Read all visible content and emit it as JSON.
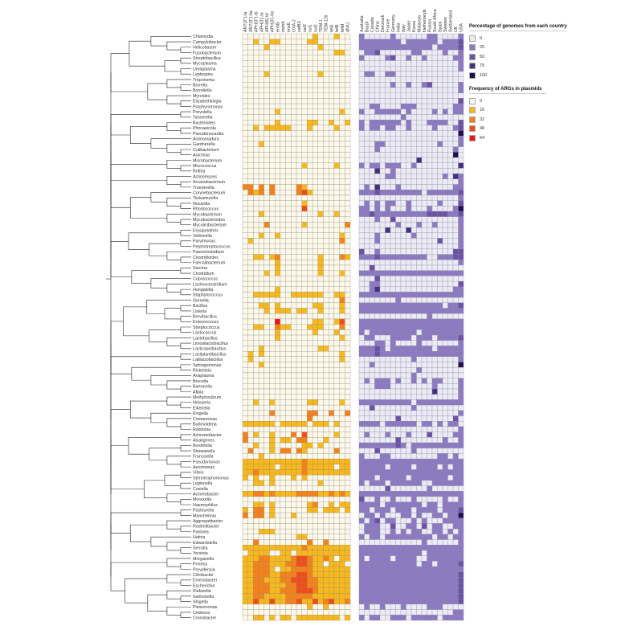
{
  "chart_data": [
    {
      "type": "heatmap",
      "title": "",
      "legend_title": "Frequency of ARGs in plasmids",
      "legend_levels": [
        "0",
        "16",
        "32",
        "48",
        "64"
      ],
      "colors": [
        "#fdf8ea",
        "#f8b81b",
        "#f6801a",
        "#f24b17",
        "#f01313"
      ],
      "columns": [
        "ANT(2'')-Ia",
        "ANT(3'')-IIa",
        "APH(3'')-Ib",
        "APH(3')-Ia",
        "APH(6)-Id",
        "APH(3')-IIa",
        "ermB",
        "mphA",
        "msrE",
        "OXA-2",
        "catB3",
        "sat2",
        "sul1",
        "sul2",
        "TEM-1",
        "TEM-116",
        "tetA",
        "tetB",
        "tetM",
        "dfrA1"
      ]
    },
    {
      "type": "heatmap",
      "title": "",
      "legend_title": "Percentage of genomes from each country",
      "legend_levels": [
        "0",
        "25",
        "50",
        "75",
        "100"
      ],
      "colors": [
        "#ebeaf5",
        "#8c79c3",
        "#6a52a6",
        "#44307f",
        "#200f50"
      ],
      "columns": [
        "Australia",
        "Brazil",
        "Canada",
        "China",
        "Denmark",
        "France",
        "Germany",
        "India",
        "Italy",
        "Japan",
        "Korea",
        "Malaysia",
        "Netherlands",
        "Russia",
        "South Africa",
        "Spain",
        "Sweden",
        "Switzerland",
        "UK",
        "USA"
      ]
    }
  ],
  "rows": [
    {
      "name": "Chlamydia",
      "args": "00000000000001000100",
      "countries": "10000010000001100001"
    },
    {
      "name": "Campylobacter",
      "args": "00100110000011000000",
      "countries": "11111111011111101112"
    },
    {
      "name": "Helicobacter",
      "args": "00001000000000100000",
      "countries": "11111111111111011112"
    },
    {
      "name": "Fusobacterium",
      "args": "00000000000000000110",
      "countries": "01120000001100001001"
    },
    {
      "name": "Streptobacillus",
      "args": "00000000000000000000",
      "countries": "10000120010010000011"
    },
    {
      "name": "Mycoplasma",
      "args": "00000000000000000000",
      "countries": "00000000000000000001"
    },
    {
      "name": "Ureaplasma",
      "args": "00000000000000000000",
      "countries": "00000000000000000001"
    },
    {
      "name": "Leptospira",
      "args": "00001000000000100000",
      "countries": "01100110000000000000"
    },
    {
      "name": "Treponema",
      "args": "00000000000000000000",
      "countries": "00000000000000000000"
    },
    {
      "name": "Borrelia",
      "args": "00000000000000000000",
      "countries": "00000010010012000001"
    },
    {
      "name": "Borreliella",
      "args": "00000000000000000000",
      "countries": "00000000000000000001"
    },
    {
      "name": "Myroides",
      "args": "00000000000000000000",
      "countries": "00000000000000000000"
    },
    {
      "name": "Elizabethkingia",
      "args": "00000000000000000000",
      "countries": "00000000000000000002"
    },
    {
      "name": "Porphyromonas",
      "args": "00000000000000000000",
      "countries": "00110000111000000011"
    },
    {
      "name": "Prevotella",
      "args": "00000010000000000010",
      "countries": "10011111010000101011"
    },
    {
      "name": "Tannerella",
      "args": "00000000000000000000",
      "countries": "00000000100000000000"
    },
    {
      "name": "Bacteroides",
      "args": "00000010000011001001",
      "countries": "10111111010001111002"
    },
    {
      "name": "Phocaeicola",
      "args": "00101111100010000100",
      "countries": "10110110010000100012"
    },
    {
      "name": "Pseudonocardia",
      "args": "00000000000000000000",
      "countries": "00000000000000000004"
    },
    {
      "name": "Actinomadura",
      "args": "00000000000000000000",
      "countries": "00000000000000000001"
    },
    {
      "name": "Gardnerella",
      "args": "00010000000000000000",
      "countries": "00011000000000010001"
    },
    {
      "name": "Cutibacterium",
      "args": "00000000000000000000",
      "countries": "00010000000000000010"
    },
    {
      "name": "Arachnia",
      "args": "00000000000000000000",
      "countries": "00000000000000000040"
    },
    {
      "name": "Microbacterium",
      "args": "00000000000000000000",
      "countries": "00000000000300000000"
    },
    {
      "name": "Micrococcus",
      "args": "00000000000100000100",
      "countries": "10110111001000000003"
    },
    {
      "name": "Rothia",
      "args": "00000000000000000000",
      "countries": "00030010000000000000"
    },
    {
      "name": "Actinomyces",
      "args": "00000000000000000000",
      "countries": "00000110000000001031"
    },
    {
      "name": "Arcanobacterium",
      "args": "00000000000000000000",
      "countries": "00000000000000000001"
    },
    {
      "name": "Trueperella",
      "args": "22020200002100000000",
      "countries": "01030001000000000011"
    },
    {
      "name": "Corynebacterium",
      "args": "02120200002310000000",
      "countries": "11121111111101111112"
    },
    {
      "name": "Tsukamurella",
      "args": "00000000000000000000",
      "countries": "00000000000000000001"
    },
    {
      "name": "Nocardia",
      "args": "00000000000100000000",
      "countries": "01010110010000010002"
    },
    {
      "name": "Rhodococcus",
      "args": "00000000000300000000",
      "countries": "11010100010001000014"
    },
    {
      "name": "Mycobacterium",
      "args": "00010000000000100100",
      "countries": "11211111111112222112"
    },
    {
      "name": "Mycobacteroides",
      "args": "00000000000000000000",
      "countries": "00010020000000000001"
    },
    {
      "name": "Mycolicibacterium",
      "args": "00002000000100000002",
      "countries": "00000001000100100001"
    },
    {
      "name": "Erysipelothrix",
      "args": "00000000000000000000",
      "countries": "00000300030000000001"
    },
    {
      "name": "Veillonella",
      "args": "00010010000000000010",
      "countries": "00010000001000000001"
    },
    {
      "name": "Parvimonas",
      "args": "01000000000000000020",
      "countries": "00010000000000020001"
    },
    {
      "name": "Peptostreptococcus",
      "args": "00000000000000000000",
      "countries": "00000000000000000001"
    },
    {
      "name": "Paeniclostridium",
      "args": "00000000000000000000",
      "countries": "20010000000000000022"
    },
    {
      "name": "Clostridioides",
      "args": "00110120000000100021",
      "countries": "11121111111110011122"
    },
    {
      "name": "Faecalibacterium",
      "args": "00000010000000100000",
      "countries": "00000000000000000001"
    },
    {
      "name": "Sarcina",
      "args": "00000010000000100000",
      "countries": "00200000000000000000"
    },
    {
      "name": "Clostridium",
      "args": "00001010000000100010",
      "countries": "11111111111111111111"
    },
    {
      "name": "Coprococcus",
      "args": "00000000000000000000",
      "countries": "00020000000000000000"
    },
    {
      "name": "Lachnoclostridium",
      "args": "00000000000000000000",
      "countries": "00110000000000000002"
    },
    {
      "name": "Hungatella",
      "args": "00000010000000000000",
      "countries": "00130000000000000011"
    },
    {
      "name": "Staphylococcus",
      "args": "00111110011111100110",
      "countries": "11111111111111111111"
    },
    {
      "name": "Gemella",
      "args": "00000000000000000020",
      "countries": "00000001000000000000"
    },
    {
      "name": "Bacillus",
      "args": "00011010000001100010",
      "countries": "11111111111111110112"
    },
    {
      "name": "Listeria",
      "args": "00001011101100100010",
      "countries": "11111111111111111111"
    },
    {
      "name": "Brevibacillus",
      "args": "00000000000000000000",
      "countries": "00000000000001000000"
    },
    {
      "name": "Enterococcus",
      "args": "00000040000001100130",
      "countries": "11111111111111111111"
    },
    {
      "name": "Streptococcus",
      "args": "00110021100011100020",
      "countries": "11111111111111111111"
    },
    {
      "name": "Lactococcus",
      "args": "00000010000001000100",
      "countries": "10111111111011111111"
    },
    {
      "name": "Lactobacillus",
      "args": "00000010000000000010",
      "countries": "01100011110111011112"
    },
    {
      "name": "Limosilactobacillus",
      "args": "00000000000000000000",
      "countries": "00011010000100000001"
    },
    {
      "name": "Lacticaseibacillus",
      "args": "00010000000000110000",
      "countries": "11121011111111011111"
    },
    {
      "name": "Lactiplantibacillus",
      "args": "01010000000000000010",
      "countries": "11121111111111111111"
    },
    {
      "name": "Latilactobacillus",
      "args": "01000000000000000010",
      "countries": "00000000001000000001"
    },
    {
      "name": "Sphingomonas",
      "args": "00010000000000000000",
      "countries": "00100000000000000004"
    },
    {
      "name": "Rickettsia",
      "args": "00000000000000000000",
      "countries": "00000000000100000000"
    },
    {
      "name": "Anaplasma",
      "args": "00000000000000000000",
      "countries": "00000000001000000000"
    },
    {
      "name": "Brucella",
      "args": "00000000000000000000",
      "countries": "01011101001010110001"
    },
    {
      "name": "Bartonella",
      "args": "00000000000000000000",
      "countries": "00011100000000100001"
    },
    {
      "name": "Afipia",
      "args": "00000000000000000000",
      "countries": "00000000000000300001"
    },
    {
      "name": "Methylorubrum",
      "args": "00000000000000000000",
      "countries": "00000000000000000001"
    },
    {
      "name": "Neisseria",
      "args": "00100100000011000010",
      "countries": "11111111110111111111"
    },
    {
      "name": "Eikenella",
      "args": "00000000000000000000",
      "countries": "00200000001000000000"
    },
    {
      "name": "Kingella",
      "args": "00000200000022002002",
      "countries": "00000000000000000001"
    },
    {
      "name": "Comamonas",
      "args": "00000000000020000000",
      "countries": "00000002000000000020"
    },
    {
      "name": "Burkholderia",
      "args": "11111101111101110100",
      "countries": "11110111111011010110"
    },
    {
      "name": "Ralstonia",
      "args": "00000000000000000000",
      "countries": "00000000000000000001"
    },
    {
      "name": "Achromobacter",
      "args": "20100100020300000100",
      "countries": "01000100010002000011"
    },
    {
      "name": "Alcaligenes",
      "args": "20000101102200010000",
      "countries": "00000002000000001001"
    },
    {
      "name": "Bordetella",
      "args": "00100100000110100000",
      "countries": "11111112101111111111"
    },
    {
      "name": "Shewanella",
      "args": "02000102202100000200",
      "countries": "00020000001000000000"
    },
    {
      "name": "Francisella",
      "args": "00010000000000000000",
      "countries": "10001100000000011010"
    },
    {
      "name": "Pseudomonas",
      "args": "11111111111211111111",
      "countries": "11111111111111111111"
    },
    {
      "name": "Aeromonas",
      "args": "11111101111211111011",
      "countries": "11111011110111101011"
    },
    {
      "name": "Vibrio",
      "args": "11211111111211111111",
      "countries": "11111111111111111111"
    },
    {
      "name": "Stenotrophomonas",
      "args": "10100100010100000000",
      "countries": "11101111101111111011"
    },
    {
      "name": "Legionella",
      "args": "00110100000000100000",
      "countries": "10111011111100111111"
    },
    {
      "name": "Coxiella",
      "args": "00000000000000000000",
      "countries": "00000200000001000000"
    },
    {
      "name": "Acinetobacter",
      "args": "11221211112222112121",
      "countries": "11111111111111111111"
    },
    {
      "name": "Moraxella",
      "args": "00000000000000000000",
      "countries": "20010010001000001001"
    },
    {
      "name": "Haemophilus",
      "args": "00110100000012001011",
      "countries": "11110111111101101111"
    },
    {
      "name": "Pasteurella",
      "args": "10220100000011011101",
      "countries": "11011101110111101112"
    },
    {
      "name": "Mannheimia",
      "args": "20220100010000000000",
      "countries": "01101000110100110114"
    },
    {
      "name": "Aggregatibacter",
      "args": "00000000000000000000",
      "countries": "10120110001010001111"
    },
    {
      "name": "Rodentibacter",
      "args": "00000000000000000000",
      "countries": "01110020011020110011"
    },
    {
      "name": "Pantoea",
      "args": "00011100000000000000",
      "countries": "01110010101100110101"
    },
    {
      "name": "Hafnia",
      "args": "00000000001100000000",
      "countries": "10110111111111011011"
    },
    {
      "name": "Edwardsiella",
      "args": "00200000000020020000",
      "countries": "00000000000010000001"
    },
    {
      "name": "Serratia",
      "args": "11111111111211111111",
      "countries": "11111111111111111111"
    },
    {
      "name": "Yersinia",
      "args": "01111001101111111111",
      "countries": "11111111111101111111"
    },
    {
      "name": "Morganella",
      "args": "11122111123321121011",
      "countries": "10111101111001111111"
    },
    {
      "name": "Proteus",
      "args": "11222111223321101110",
      "countries": "11111111111011011112"
    },
    {
      "name": "Providencia",
      "args": "11222101122221111111",
      "countries": "11111111111111111111"
    },
    {
      "name": "Citrobacter",
      "args": "11222112223321111111",
      "countries": "11111111111111111112"
    },
    {
      "name": "Enterobacter",
      "args": "11221112233322111111",
      "countries": "11111111111111111112"
    },
    {
      "name": "Escherichia",
      "args": "11222111223322111111",
      "countries": "11111111111111111112"
    },
    {
      "name": "Klebsiella",
      "args": "11222112223332111111",
      "countries": "11111111111111111112"
    },
    {
      "name": "Salmonella",
      "args": "11221111222221111111",
      "countries": "11111111111111111112"
    },
    {
      "name": "Shigella",
      "args": "11311311223113123112",
      "countries": "11111111111111111112"
    },
    {
      "name": "Plesiomonas",
      "args": "00000000000010010000",
      "countries": "01001000100001110000"
    },
    {
      "name": "Cedecea",
      "args": "00000000000000000000",
      "countries": "00000000000000000011"
    },
    {
      "name": "Cronobacter",
      "args": "00110101101111111101",
      "countries": "10110011101111101111"
    }
  ]
}
